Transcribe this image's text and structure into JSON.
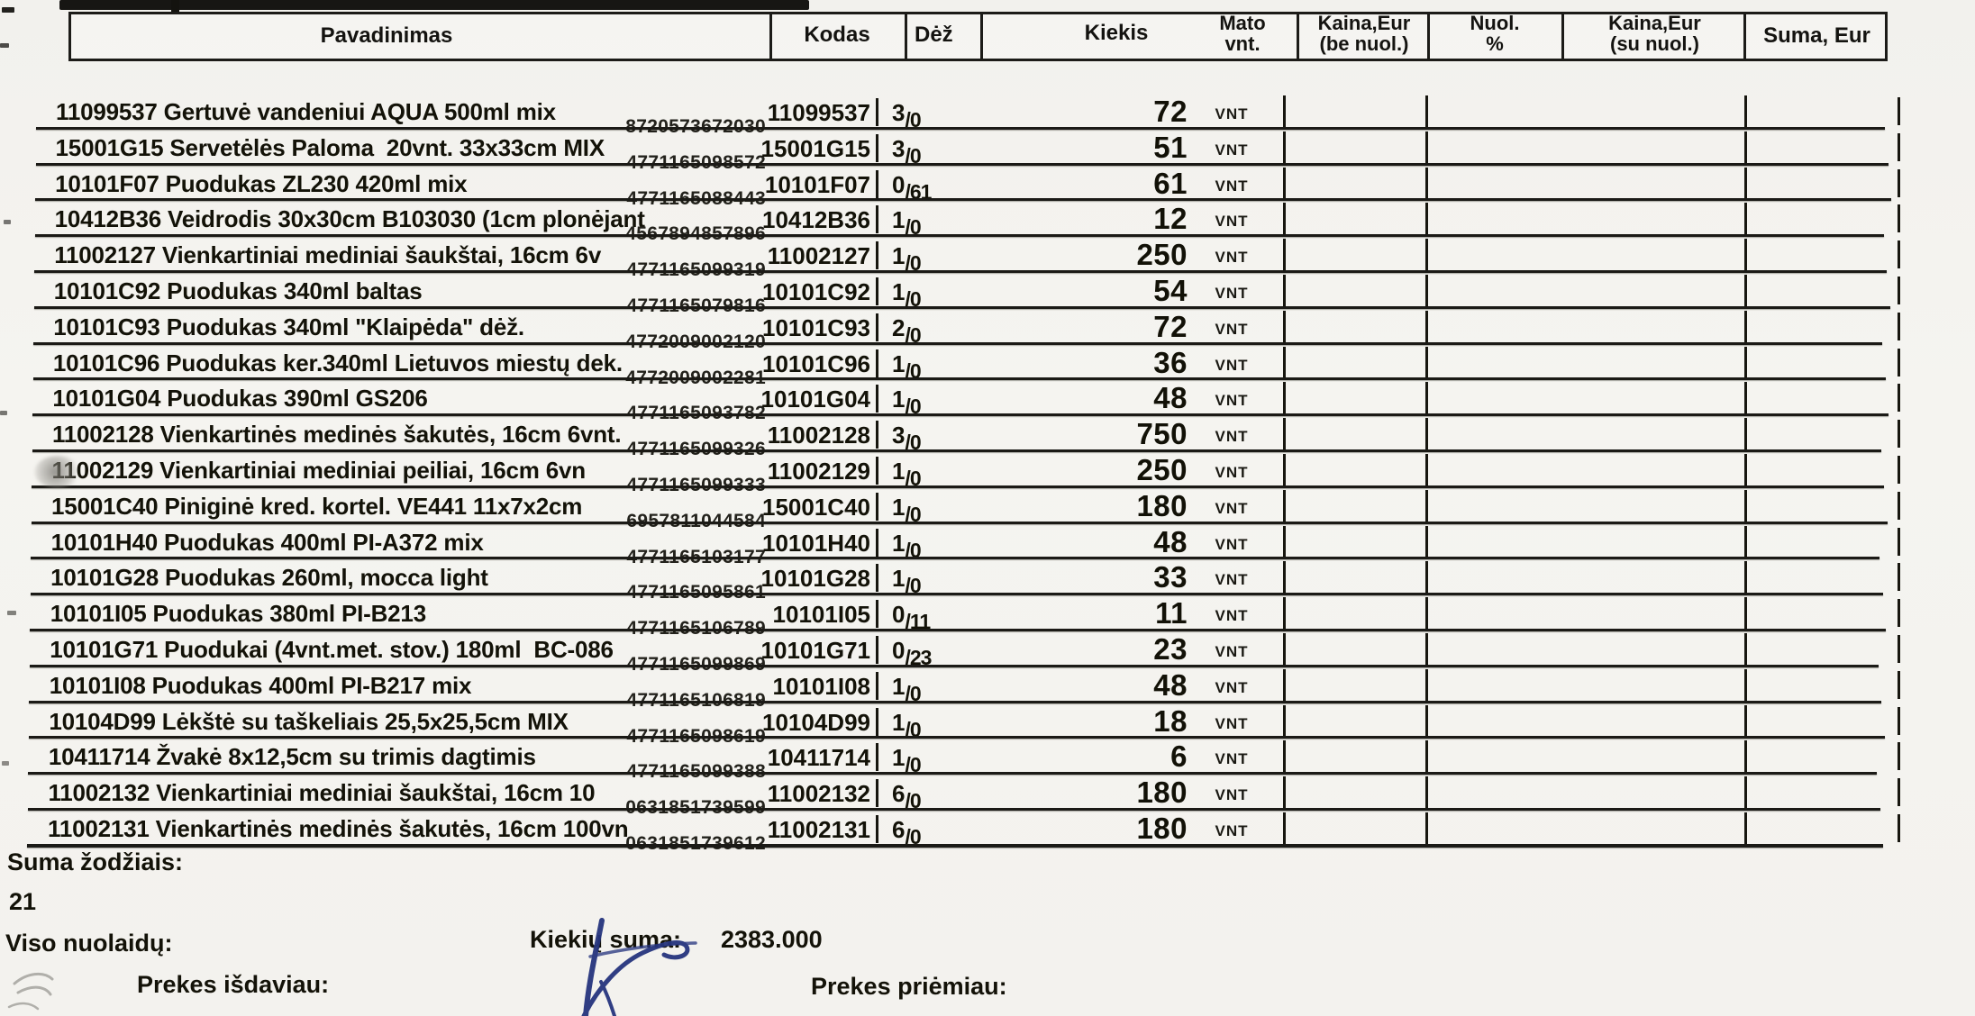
{
  "table": {
    "header": {
      "pavadinimas": "Pavadinimas",
      "kodas": "Kodas",
      "dez": "Dėž",
      "kiekis": "Kiekis",
      "mato_vnt": "Mato\nvnt.",
      "kaina_be": "Kaina,Eur\n(be nuol.)",
      "nuol": "Nuol.\n%",
      "kaina_su": "Kaina,Eur\n(su nuol.)",
      "suma": "Suma, Eur"
    },
    "rows": [
      {
        "name": "11099537 Gertuvė vandeniui AQUA 500ml mix",
        "barcode": "8720573672030",
        "code": "11099537",
        "dez_box": "3",
        "dez_units": "0",
        "qty": "72",
        "unit": "VNT"
      },
      {
        "name": "15001G15 Servetėlės Paloma  20vnt. 33x33cm MIX",
        "barcode": "4771165098572",
        "code": "15001G15",
        "dez_box": "3",
        "dez_units": "0",
        "qty": "51",
        "unit": "VNT"
      },
      {
        "name": "10101F07 Puodukas ZL230 420ml mix",
        "barcode": "4771165088443",
        "code": "10101F07",
        "dez_box": "0",
        "dez_units": "61",
        "qty": "61",
        "unit": "VNT"
      },
      {
        "name": "10412B36 Veidrodis 30x30cm B103030 (1cm plonėjant",
        "barcode": "4567894857896",
        "code": "10412B36",
        "dez_box": "1",
        "dez_units": "0",
        "qty": "12",
        "unit": "VNT"
      },
      {
        "name": "11002127 Vienkartiniai mediniai šaukštai, 16cm 6v",
        "barcode": "4771165099319",
        "code": "11002127",
        "dez_box": "1",
        "dez_units": "0",
        "qty": "250",
        "unit": "VNT"
      },
      {
        "name": "10101C92 Puodukas 340ml baltas",
        "barcode": "4771165079816",
        "code": "10101C92",
        "dez_box": "1",
        "dez_units": "0",
        "qty": "54",
        "unit": "VNT"
      },
      {
        "name": "10101C93 Puodukas 340ml \"Klaipėda\" dėž.",
        "barcode": "4772009002120",
        "code": "10101C93",
        "dez_box": "2",
        "dez_units": "0",
        "qty": "72",
        "unit": "VNT"
      },
      {
        "name": "10101C96 Puodukas ker.340ml Lietuvos miestų dek.",
        "barcode": "4772009002281",
        "code": "10101C96",
        "dez_box": "1",
        "dez_units": "0",
        "qty": "36",
        "unit": "VNT"
      },
      {
        "name": "10101G04 Puodukas 390ml GS206",
        "barcode": "4771165093782",
        "code": "10101G04",
        "dez_box": "1",
        "dez_units": "0",
        "qty": "48",
        "unit": "VNT"
      },
      {
        "name": "11002128 Vienkartinės medinės šakutės, 16cm 6vnt.",
        "barcode": "4771165099326",
        "code": "11002128",
        "dez_box": "3",
        "dez_units": "0",
        "qty": "750",
        "unit": "VNT"
      },
      {
        "name": "11002129 Vienkartiniai mediniai peiliai, 16cm 6vn",
        "barcode": "4771165099333",
        "code": "11002129",
        "dez_box": "1",
        "dez_units": "0",
        "qty": "250",
        "unit": "VNT"
      },
      {
        "name": "15001C40 Piniginė kred. kortel. VE441 11x7x2cm",
        "barcode": "6957811044584",
        "code": "15001C40",
        "dez_box": "1",
        "dez_units": "0",
        "qty": "180",
        "unit": "VNT"
      },
      {
        "name": "10101H40 Puodukas 400ml PI-A372 mix",
        "barcode": "4771165103177",
        "code": "10101H40",
        "dez_box": "1",
        "dez_units": "0",
        "qty": "48",
        "unit": "VNT"
      },
      {
        "name": "10101G28 Puodukas 260ml, mocca light",
        "barcode": "4771165095861",
        "code": "10101G28",
        "dez_box": "1",
        "dez_units": "0",
        "qty": "33",
        "unit": "VNT"
      },
      {
        "name": "10101I05 Puodukas 380ml PI-B213",
        "barcode": "4771165106789",
        "code": "10101I05",
        "dez_box": "0",
        "dez_units": "11",
        "qty": "11",
        "unit": "VNT"
      },
      {
        "name": "10101G71 Puodukai (4vnt.met. stov.) 180ml  BC-086",
        "barcode": "4771165099869",
        "code": "10101G71",
        "dez_box": "0",
        "dez_units": "23",
        "qty": "23",
        "unit": "VNT"
      },
      {
        "name": "10101I08 Puodukas 400ml PI-B217 mix",
        "barcode": "4771165106819",
        "code": "10101I08",
        "dez_box": "1",
        "dez_units": "0",
        "qty": "48",
        "unit": "VNT"
      },
      {
        "name": "10104D99 Lėkštė su taškeliais 25,5x25,5cm MIX",
        "barcode": "4771165098619",
        "code": "10104D99",
        "dez_box": "1",
        "dez_units": "0",
        "qty": "18",
        "unit": "VNT"
      },
      {
        "name": "10411714 Žvakė 8x12,5cm su trimis dagtimis",
        "barcode": "4771165099388",
        "code": "10411714",
        "dez_box": "1",
        "dez_units": "0",
        "qty": "6",
        "unit": "VNT"
      },
      {
        "name": "11002132 Vienkartiniai mediniai šaukštai, 16cm 10",
        "barcode": "0631851739599",
        "code": "11002132",
        "dez_box": "6",
        "dez_units": "0",
        "qty": "180",
        "unit": "VNT"
      },
      {
        "name": "11002131 Vienkartinės medinės šakutės, 16cm 100vn",
        "barcode": "0631851739612",
        "code": "11002131",
        "dez_box": "6",
        "dez_units": "0",
        "qty": "180",
        "unit": "VNT"
      }
    ]
  },
  "footer": {
    "suma_zodziais_label": "Suma žodžiais:",
    "row_count": "21",
    "viso_nuolaidu_label": "Viso nuolaidų:",
    "kiekiu_suma_label": "Kiekių suma:",
    "kiekiu_suma_value": "2383.000",
    "issued_label": "Prekes išdaviau:",
    "received_label": "Prekes priėmiau:"
  },
  "ink_color": "#26357e"
}
